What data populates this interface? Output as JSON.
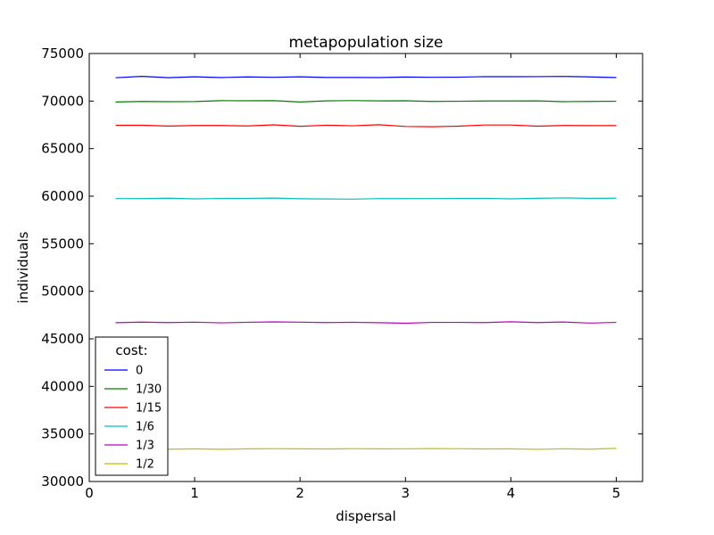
{
  "chart_data": {
    "type": "line",
    "title": "metapopulation size",
    "xlabel": "dispersal",
    "ylabel": "individuals",
    "xlim": [
      0,
      5.25
    ],
    "ylim": [
      30000,
      75000
    ],
    "xticks": [
      0,
      1,
      2,
      3,
      4,
      5
    ],
    "xtick_labels": [
      "0",
      "1",
      "2",
      "3",
      "4",
      "5"
    ],
    "yticks": [
      30000,
      35000,
      40000,
      45000,
      50000,
      55000,
      60000,
      65000,
      70000,
      75000
    ],
    "ytick_labels": [
      "30000",
      "35000",
      "40000",
      "45000",
      "50000",
      "55000",
      "60000",
      "65000",
      "70000",
      "75000"
    ],
    "grid": false,
    "legend": {
      "title": "cost:",
      "placement": "lower-left"
    },
    "x": [
      0.25,
      0.5,
      0.75,
      1.0,
      1.25,
      1.5,
      1.75,
      2.0,
      2.25,
      2.5,
      2.75,
      3.0,
      3.25,
      3.5,
      3.75,
      4.0,
      4.25,
      4.5,
      4.75,
      5.0
    ],
    "series": [
      {
        "name": "0",
        "color": "#0000ff",
        "values": [
          72450,
          72600,
          72460,
          72550,
          72470,
          72540,
          72500,
          72550,
          72480,
          72480,
          72470,
          72530,
          72500,
          72510,
          72570,
          72560,
          72570,
          72590,
          72540,
          72470
        ]
      },
      {
        "name": "1/30",
        "color": "#008000",
        "values": [
          69900,
          69960,
          69940,
          69950,
          70040,
          70030,
          70040,
          69900,
          70020,
          70050,
          70020,
          70030,
          69960,
          69980,
          70010,
          70010,
          70020,
          69940,
          69960,
          69980
        ]
      },
      {
        "name": "1/15",
        "color": "#ff0000",
        "values": [
          67450,
          67450,
          67370,
          67430,
          67430,
          67380,
          67500,
          67350,
          67460,
          67400,
          67510,
          67330,
          67300,
          67360,
          67480,
          67480,
          67360,
          67430,
          67420,
          67420
        ]
      },
      {
        "name": "1/6",
        "color": "#00bfbf",
        "values": [
          59750,
          59740,
          59790,
          59720,
          59760,
          59770,
          59800,
          59730,
          59710,
          59690,
          59750,
          59740,
          59750,
          59760,
          59770,
          59720,
          59780,
          59820,
          59770,
          59790
        ]
      },
      {
        "name": "1/3",
        "color": "#bf00bf",
        "values": [
          46700,
          46760,
          46710,
          46750,
          46680,
          46740,
          46780,
          46750,
          46710,
          46740,
          46700,
          46640,
          46730,
          46730,
          46710,
          46790,
          46710,
          46770,
          46660,
          46730
        ]
      },
      {
        "name": "1/2",
        "color": "#bfbf00",
        "values": [
          33420,
          33430,
          33400,
          33430,
          33390,
          33430,
          33450,
          33430,
          33420,
          33450,
          33430,
          33440,
          33460,
          33450,
          33420,
          33430,
          33380,
          33440,
          33400,
          33480
        ]
      }
    ]
  }
}
